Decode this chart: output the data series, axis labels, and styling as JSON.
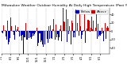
{
  "title": "Milwaukee Weather Outdoor Humidity At Daily High Temperature (Past Year)",
  "legend_blue_label": "Below",
  "legend_red_label": "Above",
  "num_days": 365,
  "seed": 42,
  "ylim": [
    -55,
    55
  ],
  "yticks": [
    -40,
    -20,
    0,
    20,
    40
  ],
  "yticklabels": [
    "-40",
    "-20",
    "0",
    "20",
    "40"
  ],
  "background_color": "#ffffff",
  "bar_above_color": "#cc0000",
  "bar_below_color": "#0000bb",
  "grid_color": "#888888",
  "title_color": "#000000",
  "title_fontsize": 3.2,
  "tick_fontsize": 2.5,
  "legend_fontsize": 3.0,
  "month_starts": [
    0,
    31,
    59,
    90,
    120,
    151,
    181,
    212,
    243,
    273,
    304,
    334
  ],
  "month_labels": [
    "7/1",
    "8/1",
    "9/1",
    "10/1",
    "11/1",
    "12/1",
    "1/1",
    "2/1",
    "3/1",
    "4/1",
    "5/1",
    "6/1"
  ]
}
